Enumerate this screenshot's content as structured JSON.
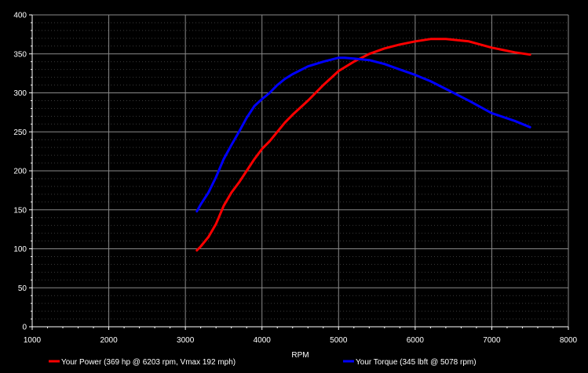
{
  "chart_data": {
    "type": "line",
    "xlabel": "RPM",
    "ylabel": "",
    "xlim": [
      1000,
      8000
    ],
    "ylim": [
      0,
      400
    ],
    "x_ticks": [
      1000,
      2000,
      3000,
      4000,
      5000,
      6000,
      7000,
      8000
    ],
    "y_ticks": [
      0,
      50,
      100,
      150,
      200,
      250,
      300,
      350,
      400
    ],
    "grid": true,
    "legend_position": "bottom",
    "background": "#000000",
    "series": [
      {
        "name": "Your Power (369 hp @ 6203 rpm, Vmax 192 mph)",
        "color": "#ff0000",
        "x": [
          3150,
          3200,
          3300,
          3400,
          3500,
          3600,
          3700,
          3800,
          3900,
          4000,
          4100,
          4200,
          4300,
          4400,
          4600,
          4800,
          5000,
          5200,
          5400,
          5600,
          5800,
          6000,
          6200,
          6400,
          6700,
          7000,
          7300,
          7500
        ],
        "y": [
          98,
          103,
          115,
          132,
          155,
          172,
          185,
          200,
          215,
          228,
          238,
          250,
          262,
          272,
          290,
          310,
          328,
          340,
          350,
          357,
          362,
          366,
          369,
          369,
          366,
          358,
          352,
          349
        ]
      },
      {
        "name": "Your Torque (345 lbft @ 5078 rpm)",
        "color": "#0000ff",
        "x": [
          3150,
          3200,
          3300,
          3400,
          3500,
          3600,
          3700,
          3800,
          3900,
          4000,
          4100,
          4200,
          4300,
          4400,
          4600,
          4800,
          5000,
          5078,
          5200,
          5400,
          5600,
          5800,
          6000,
          6200,
          6400,
          6700,
          7000,
          7300,
          7500
        ],
        "y": [
          148,
          157,
          172,
          192,
          215,
          233,
          250,
          268,
          283,
          292,
          300,
          310,
          318,
          324,
          334,
          340,
          345,
          345,
          344,
          342,
          337,
          330,
          323,
          315,
          305,
          290,
          274,
          264,
          256
        ]
      }
    ]
  }
}
